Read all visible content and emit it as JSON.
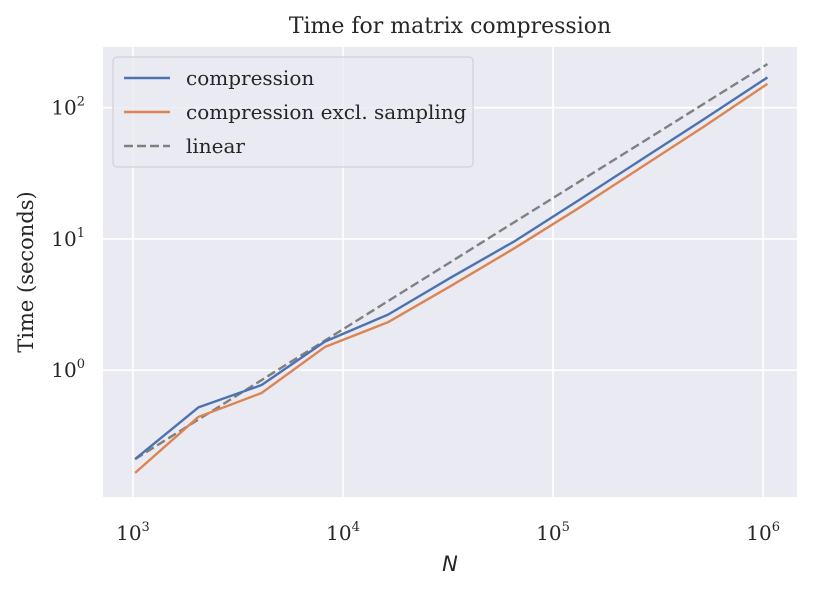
{
  "chart_data": {
    "type": "line",
    "title": "Time for matrix compression",
    "xlabel": "N",
    "ylabel": "Time (seconds)",
    "xscale": "log",
    "yscale": "log",
    "xlim": [
      720,
      1450000
    ],
    "ylim": [
      0.108,
      290
    ],
    "grid": true,
    "legend_position": "top-left",
    "x_ticks": [
      {
        "value": 1000,
        "base": "10",
        "exp": "3"
      },
      {
        "value": 10000,
        "base": "10",
        "exp": "4"
      },
      {
        "value": 100000,
        "base": "10",
        "exp": "5"
      },
      {
        "value": 1000000,
        "base": "10",
        "exp": "6"
      }
    ],
    "y_ticks": [
      {
        "value": 1,
        "base": "10",
        "exp": "0"
      },
      {
        "value": 10,
        "base": "10",
        "exp": "1"
      },
      {
        "value": 100,
        "base": "10",
        "exp": "2"
      }
    ],
    "series": [
      {
        "name": "compression",
        "color": "#4c72b0",
        "style": "solid",
        "x": [
          1024,
          2048,
          4096,
          8192,
          16384,
          32768,
          65536,
          131072,
          262144,
          524288,
          1048576
        ],
        "y": [
          0.21,
          0.52,
          0.77,
          1.65,
          2.65,
          5.1,
          9.6,
          19.5,
          40,
          82,
          170
        ]
      },
      {
        "name": "compression excl. sampling",
        "color": "#dd8452",
        "style": "solid",
        "x": [
          1024,
          2048,
          4096,
          8192,
          16384,
          32768,
          65536,
          131072,
          262144,
          524288,
          1048576
        ],
        "y": [
          0.165,
          0.44,
          0.67,
          1.5,
          2.32,
          4.4,
          8.5,
          17.0,
          35,
          72,
          152
        ]
      },
      {
        "name": "linear",
        "color": "#808080",
        "style": "dashed",
        "x": [
          1024,
          1048576
        ],
        "y": [
          0.21,
          215
        ]
      }
    ]
  }
}
